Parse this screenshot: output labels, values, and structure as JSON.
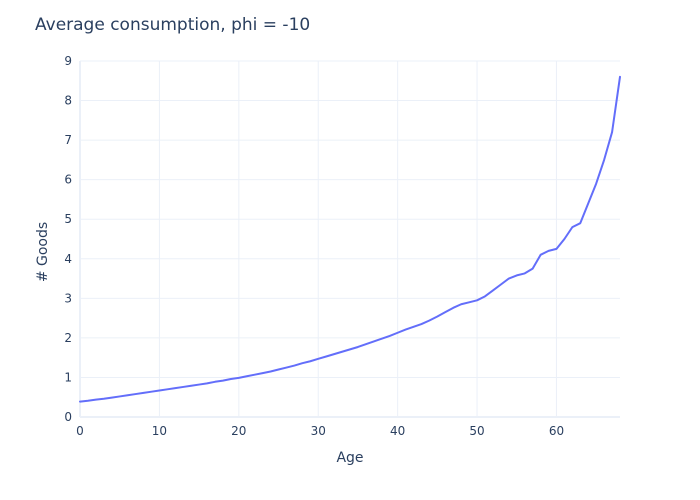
{
  "chart_data": {
    "type": "line",
    "title": "Average consumption, phi = -10",
    "xlabel": "Age",
    "ylabel": "# Goods",
    "xlim": [
      0,
      68
    ],
    "ylim": [
      0,
      9
    ],
    "xticks": [
      0,
      10,
      20,
      30,
      40,
      50,
      60
    ],
    "yticks": [
      0,
      1,
      2,
      3,
      4,
      5,
      6,
      7,
      8,
      9
    ],
    "grid": true,
    "line_color": "#636efa",
    "series": [
      {
        "x": [
          0,
          1,
          2,
          3,
          4,
          5,
          6,
          7,
          8,
          9,
          10,
          11,
          12,
          13,
          14,
          15,
          16,
          17,
          18,
          19,
          20,
          21,
          22,
          23,
          24,
          25,
          26,
          27,
          28,
          29,
          30,
          31,
          32,
          33,
          34,
          35,
          36,
          37,
          38,
          39,
          40,
          41,
          42,
          43,
          44,
          45,
          46,
          47,
          48,
          49,
          50,
          51,
          52,
          53,
          54,
          55,
          56,
          57,
          58,
          59,
          60,
          61,
          62,
          63,
          64,
          65,
          66,
          67,
          68
        ],
        "y": [
          0.39,
          0.41,
          0.44,
          0.46,
          0.49,
          0.52,
          0.55,
          0.58,
          0.61,
          0.64,
          0.67,
          0.7,
          0.73,
          0.76,
          0.79,
          0.82,
          0.85,
          0.89,
          0.92,
          0.96,
          0.99,
          1.03,
          1.07,
          1.11,
          1.15,
          1.2,
          1.25,
          1.3,
          1.36,
          1.41,
          1.47,
          1.53,
          1.59,
          1.65,
          1.71,
          1.77,
          1.84,
          1.91,
          1.98,
          2.05,
          2.13,
          2.21,
          2.28,
          2.35,
          2.44,
          2.54,
          2.65,
          2.76,
          2.85,
          2.9,
          2.95,
          3.05,
          3.2,
          3.35,
          3.5,
          3.58,
          3.63,
          3.75,
          4.1,
          4.2,
          4.25,
          4.5,
          4.8,
          4.9,
          5.4,
          5.9,
          6.5,
          7.2,
          8.6
        ]
      }
    ]
  }
}
